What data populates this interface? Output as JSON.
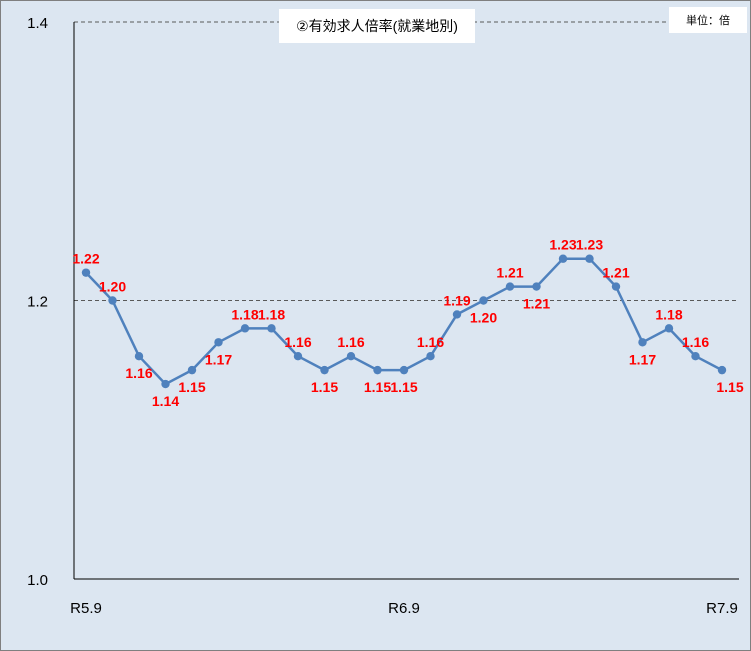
{
  "chart_data": {
    "type": "line",
    "title": "②有効求人倍率(就業地別)",
    "unit_label": "単位：倍",
    "ylim": [
      1.0,
      1.4
    ],
    "yticks": [
      "1.0",
      "1.2",
      "1.4"
    ],
    "xtick_labels": [
      {
        "index": 0,
        "label": "R5.9"
      },
      {
        "index": 12,
        "label": "R6.9"
      },
      {
        "index": 24,
        "label": "R7.9"
      }
    ],
    "grid": "dashed horizontal at 1.2 and 1.4",
    "line_color": "#4f81bd",
    "label_color": "#ff0000",
    "series": [
      {
        "values": [
          1.22,
          1.2,
          1.16,
          1.14,
          1.15,
          1.17,
          1.18,
          1.18,
          1.16,
          1.15,
          1.16,
          1.15,
          1.15,
          1.16,
          1.19,
          1.2,
          1.21,
          1.21,
          1.23,
          1.23,
          1.21,
          1.17,
          1.18,
          1.16,
          1.15
        ],
        "labels": [
          "1.22",
          "1.20",
          "1.16",
          "1.14",
          "1.15",
          "1.17",
          "1.18",
          "1.18",
          "1.16",
          "1.15",
          "1.16",
          "1.15",
          "1.15",
          "1.16",
          "1.19",
          "1.20",
          "1.21",
          "1.21",
          "1.23",
          "1.23",
          "1.21",
          "1.17",
          "1.18",
          "1.16",
          "1.15"
        ]
      }
    ]
  }
}
